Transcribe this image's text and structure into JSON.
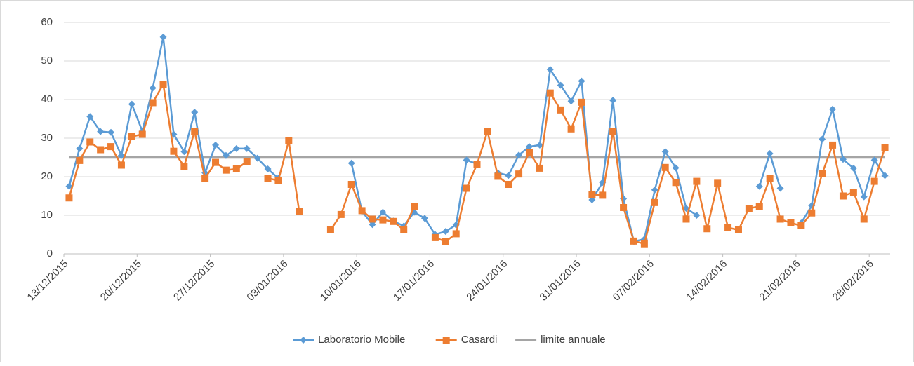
{
  "chart_data": {
    "type": "line",
    "categories": [
      "13/12/2015",
      null,
      null,
      null,
      null,
      null,
      null,
      "20/12/2015",
      null,
      null,
      null,
      null,
      null,
      null,
      "27/12/2015",
      null,
      null,
      null,
      null,
      null,
      null,
      "03/01/2016",
      null,
      null,
      null,
      null,
      null,
      null,
      "10/01/2016",
      null,
      null,
      null,
      null,
      null,
      null,
      "17/01/2016",
      null,
      null,
      null,
      null,
      null,
      null,
      "24/01/2016",
      null,
      null,
      null,
      null,
      null,
      null,
      "31/01/2016",
      null,
      null,
      null,
      null,
      null,
      null,
      "07/02/2016",
      null,
      null,
      null,
      null,
      null,
      null,
      "14/02/2016",
      null,
      null,
      null,
      null,
      null,
      null,
      "21/02/2016",
      null,
      null,
      null,
      null,
      null,
      null,
      "28/02/2016",
      null
    ],
    "series": [
      {
        "name": "Laboratorio Mobile",
        "color": "#5b9bd5",
        "marker": "diamond",
        "values": [
          17.5,
          27.3,
          35.6,
          31.7,
          31.5,
          25.5,
          38.8,
          31.8,
          43,
          56.2,
          31,
          26.5,
          36.7,
          21,
          28.2,
          25.5,
          27.3,
          27.3,
          24.8,
          22,
          19.6,
          null,
          null,
          null,
          null,
          null,
          null,
          23.5,
          11,
          7.6,
          10.8,
          8.5,
          7.2,
          10.8,
          9.2,
          5,
          5.8,
          7.5,
          24.3,
          23.3,
          null,
          21,
          20.3,
          25.6,
          27.8,
          28.2,
          47.8,
          43.7,
          39.6,
          44.8,
          14,
          18.5,
          39.8,
          14.3,
          3.2,
          3.8,
          16.6,
          26.5,
          22.3,
          11.8,
          10,
          null,
          null,
          null,
          null,
          null,
          17.5,
          26,
          17,
          null,
          8,
          12.5,
          29.7,
          37.5,
          24.5,
          22.2,
          14.8,
          24.3,
          20.3
        ]
      },
      {
        "name": "Casardi",
        "color": "#ed7d31",
        "marker": "square",
        "values": [
          14.5,
          24.2,
          29,
          27,
          27.8,
          23,
          30.4,
          31,
          39.2,
          44,
          26.6,
          22.7,
          31.7,
          19.6,
          23.7,
          21.7,
          22,
          23.9,
          null,
          19.6,
          19,
          29.3,
          11,
          null,
          null,
          6.2,
          10.2,
          18,
          11.2,
          9,
          8.8,
          8.4,
          6.2,
          12.3,
          null,
          4.2,
          3.2,
          5.2,
          17,
          23.2,
          31.8,
          20.1,
          18,
          20.7,
          26.2,
          22.2,
          41.7,
          37.3,
          32.4,
          39.3,
          15.4,
          15.2,
          31.8,
          12,
          3.3,
          2.6,
          13.3,
          22.4,
          18.5,
          9,
          18.8,
          6.5,
          18.3,
          6.8,
          6.2,
          11.8,
          12.3,
          19.6,
          9,
          8,
          7.3,
          10.6,
          20.8,
          28.2,
          15,
          16,
          9,
          18.8,
          27.6
        ]
      }
    ],
    "reference_line": {
      "name": "limite annuale",
      "color": "#a5a5a5",
      "value": 25
    },
    "ylim": [
      0,
      60
    ],
    "yticks": [
      0,
      10,
      20,
      30,
      40,
      50,
      60
    ],
    "grid": true,
    "legend": "bottom"
  }
}
